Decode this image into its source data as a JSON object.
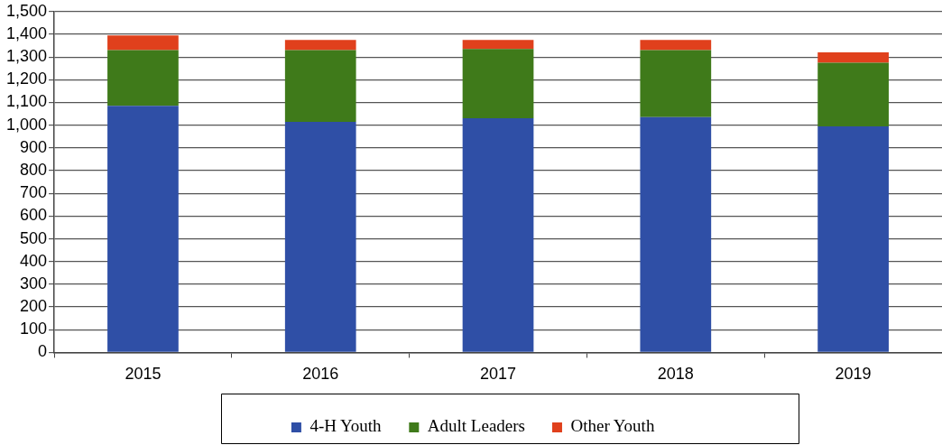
{
  "chart_data": {
    "type": "bar",
    "stacked": true,
    "categories": [
      "2015",
      "2016",
      "2017",
      "2018",
      "2019"
    ],
    "series": [
      {
        "name": "4-H Youth",
        "color": "#2f4fa6",
        "values": [
          1085,
          1015,
          1030,
          1035,
          995
        ]
      },
      {
        "name": "Adult Leaders",
        "color": "#3f7a1a",
        "values": [
          245,
          315,
          305,
          295,
          280
        ]
      },
      {
        "name": "Other Youth",
        "color": "#e0401c",
        "values": [
          65,
          45,
          40,
          45,
          45
        ]
      }
    ],
    "ylim": [
      0,
      1500
    ],
    "yticks": [
      0,
      100,
      200,
      300,
      400,
      500,
      600,
      700,
      800,
      900,
      {
        "value": 1000,
        "label": "1,000"
      },
      {
        "value": 1100,
        "label": "1,100"
      },
      {
        "value": 1200,
        "label": "1,200"
      },
      {
        "value": 1300,
        "label": "1,300"
      },
      {
        "value": 1400,
        "label": "1,400"
      },
      {
        "value": 1500,
        "label": "1,500"
      }
    ],
    "grid": "y",
    "legend": "bottom"
  }
}
